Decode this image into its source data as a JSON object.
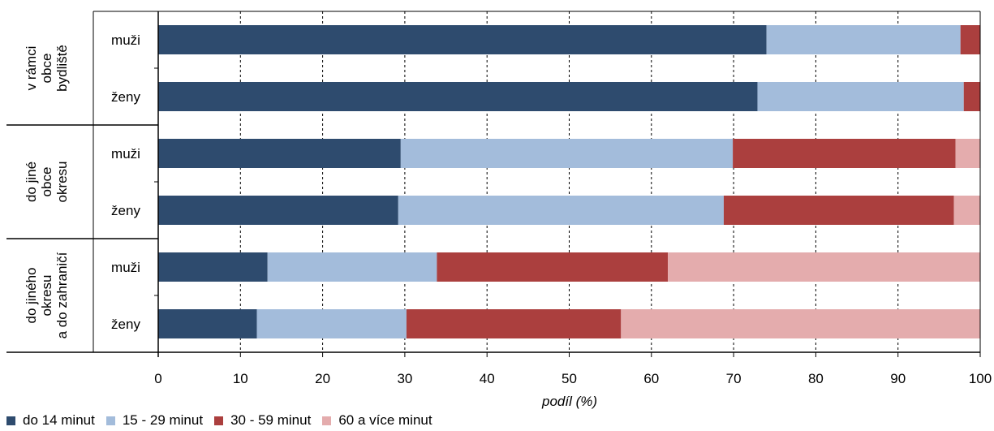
{
  "chart_data": {
    "type": "bar",
    "orientation": "horizontal",
    "stacked": true,
    "title": "",
    "xlabel": "podíl (%)",
    "ylabel": "",
    "xlim": [
      0,
      100
    ],
    "x_ticks": [
      "0",
      "10",
      "20",
      "30",
      "40",
      "50",
      "60",
      "70",
      "80",
      "90",
      "100"
    ],
    "grid": "vertical dashed",
    "legend_position": "bottom-left",
    "groups": [
      {
        "label_lines": [
          "v rámci",
          "obce",
          "bydliště"
        ],
        "rows": [
          "muži",
          "ženy"
        ]
      },
      {
        "label_lines": [
          "do jiné",
          "obce",
          "okresu"
        ],
        "rows": [
          "muži",
          "ženy"
        ]
      },
      {
        "label_lines": [
          "do jiného",
          "okresu",
          "a do zahraničí"
        ],
        "rows": [
          "muži",
          "ženy"
        ]
      }
    ],
    "categories": [
      "v rámci obce bydliště – muži",
      "v rámci obce bydliště – ženy",
      "do jiné obce okresu – muži",
      "do jiné obce okresu – ženy",
      "do jiného okresu a do zahraničí – muži",
      "do jiného okresu a do zahraničí – ženy"
    ],
    "series": [
      {
        "name": "do 14 minut",
        "color": "#2e4b6e",
        "values": [
          74.0,
          72.9,
          29.5,
          29.2,
          13.3,
          12.0
        ]
      },
      {
        "name": "15 - 29 minut",
        "color": "#a3bcdb",
        "values": [
          23.6,
          25.1,
          40.4,
          39.6,
          20.6,
          18.2
        ]
      },
      {
        "name": "30 - 59 minut",
        "color": "#ab3f3e",
        "values": [
          2.4,
          2.0,
          27.1,
          28.0,
          28.1,
          26.1
        ]
      },
      {
        "name": "60 a více minut",
        "color": "#e4acad",
        "values": [
          0.0,
          0.0,
          3.0,
          3.2,
          38.0,
          43.7
        ]
      }
    ]
  }
}
